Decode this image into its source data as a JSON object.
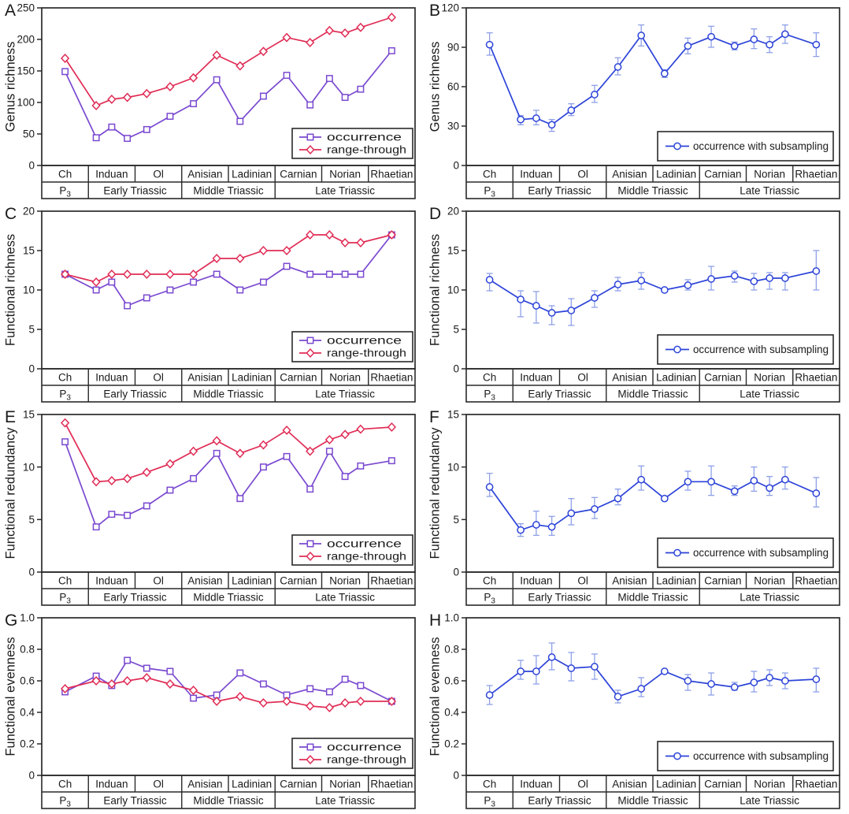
{
  "figure": {
    "colors": {
      "occurrence": "#7a49d0",
      "range_through": "#e02d56",
      "subsampling": "#2c43d8",
      "error_bar": "#8fa0e8",
      "axis": "#2a2a2a",
      "text": "#1a1a1a",
      "background": "#ffffff"
    },
    "x_axis": {
      "stage_row": [
        {
          "label": "Ch",
          "bins": 1
        },
        {
          "label": "Induan",
          "bins": 3
        },
        {
          "label": "Ol",
          "bins": 2
        },
        {
          "label": "Anisian",
          "bins": 2
        },
        {
          "label": "Ladinian",
          "bins": 2
        },
        {
          "label": "Carnian",
          "bins": 2
        },
        {
          "label": "Norian",
          "bins": 3
        },
        {
          "label": "Rhaetian",
          "bins": 1
        }
      ],
      "period_row": [
        {
          "label": "P",
          "sub": "3",
          "stages": 1
        },
        {
          "label": "Early Triassic",
          "stages": 2
        },
        {
          "label": "Middle Triassic",
          "stages": 2
        },
        {
          "label": "Late Triassic",
          "stages": 3
        }
      ]
    },
    "legend_labels": {
      "occurrence": "occurrence",
      "range_through": "range-through",
      "subsampling": "occurrence with subsampling"
    }
  },
  "chart_data": [
    {
      "panel": "A",
      "type": "line",
      "ylabel": "Genus richness",
      "ylim": [
        0,
        250
      ],
      "ytick_step": 50,
      "ytick_decimals": 0,
      "grid": false,
      "legend_position": "lower-right",
      "categories": [
        "Ch",
        "Induan (a)",
        "Induan (b)",
        "Induan (c)",
        "Ol (a)",
        "Ol (b)",
        "Anisian (a)",
        "Anisian (b)",
        "Ladinian (a)",
        "Ladinian (b)",
        "Carnian (a)",
        "Carnian (b)",
        "Norian (a)",
        "Norian (b)",
        "Norian (c)",
        "Rhaetian"
      ],
      "series": [
        {
          "name": "occurrence",
          "color_key": "occurrence",
          "marker": "square",
          "values": [
            149,
            44,
            61,
            43,
            57,
            78,
            98,
            136,
            70,
            110,
            143,
            96,
            138,
            108,
            121,
            182
          ]
        },
        {
          "name": "range-through",
          "color_key": "range_through",
          "marker": "diamond",
          "values": [
            170,
            95,
            105,
            108,
            114,
            125,
            139,
            175,
            158,
            181,
            203,
            195,
            214,
            210,
            219,
            235
          ]
        }
      ]
    },
    {
      "panel": "B",
      "type": "line",
      "ylabel": "Genus richness",
      "ylim": [
        0,
        120
      ],
      "ytick_step": 30,
      "ytick_decimals": 0,
      "grid": false,
      "legend_position": "lower-right",
      "categories": [
        "Ch",
        "Induan (a)",
        "Induan (b)",
        "Induan (c)",
        "Ol (a)",
        "Ol (b)",
        "Anisian (a)",
        "Anisian (b)",
        "Ladinian (a)",
        "Ladinian (b)",
        "Carnian (a)",
        "Carnian (b)",
        "Norian (a)",
        "Norian (b)",
        "Norian (c)",
        "Rhaetian"
      ],
      "series": [
        {
          "name": "occurrence with subsampling",
          "color_key": "subsampling",
          "marker": "circle",
          "values": [
            92,
            35,
            36,
            31,
            42,
            54,
            75,
            99,
            70,
            91,
            98,
            91,
            96,
            92,
            100,
            92
          ],
          "error_low": [
            84,
            31,
            31,
            26,
            38,
            48,
            69,
            91,
            67,
            85,
            90,
            88,
            89,
            86,
            93,
            83
          ],
          "error_high": [
            101,
            38,
            42,
            35,
            47,
            61,
            82,
            107,
            73,
            97,
            106,
            94,
            104,
            98,
            107,
            101
          ]
        }
      ]
    },
    {
      "panel": "C",
      "type": "line",
      "ylabel": "Functional richness",
      "ylim": [
        0,
        20
      ],
      "ytick_step": 5,
      "ytick_decimals": 0,
      "grid": false,
      "legend_position": "lower-right",
      "categories": [
        "Ch",
        "Induan (a)",
        "Induan (b)",
        "Induan (c)",
        "Ol (a)",
        "Ol (b)",
        "Anisian (a)",
        "Anisian (b)",
        "Ladinian (a)",
        "Ladinian (b)",
        "Carnian (a)",
        "Carnian (b)",
        "Norian (a)",
        "Norian (b)",
        "Norian (c)",
        "Rhaetian"
      ],
      "series": [
        {
          "name": "occurrence",
          "color_key": "occurrence",
          "marker": "square",
          "values": [
            12,
            10,
            11,
            8,
            9,
            10,
            11,
            12,
            10,
            11,
            13,
            12,
            12,
            12,
            12,
            17
          ]
        },
        {
          "name": "range-through",
          "color_key": "range_through",
          "marker": "diamond",
          "values": [
            12,
            11,
            12,
            12,
            12,
            12,
            12,
            14,
            14,
            15,
            15,
            17,
            17,
            16,
            16,
            17
          ]
        }
      ]
    },
    {
      "panel": "D",
      "type": "line",
      "ylabel": "Functional richness",
      "ylim": [
        0,
        20
      ],
      "ytick_step": 5,
      "ytick_decimals": 0,
      "grid": false,
      "legend_position": "lower-right",
      "categories": [
        "Ch",
        "Induan (a)",
        "Induan (b)",
        "Induan (c)",
        "Ol (a)",
        "Ol (b)",
        "Anisian (a)",
        "Anisian (b)",
        "Ladinian (a)",
        "Ladinian (b)",
        "Carnian (a)",
        "Carnian (b)",
        "Norian (a)",
        "Norian (b)",
        "Norian (c)",
        "Rhaetian"
      ],
      "series": [
        {
          "name": "occurrence with subsampling",
          "color_key": "subsampling",
          "marker": "circle",
          "values": [
            11.3,
            8.8,
            8.0,
            7.1,
            7.4,
            9.0,
            10.7,
            11.2,
            10.0,
            10.6,
            11.4,
            11.8,
            11.1,
            11.5,
            11.5,
            12.4
          ],
          "error_low": [
            9.9,
            6.6,
            5.8,
            5.6,
            5.5,
            7.8,
            9.9,
            10.1,
            9.8,
            10.0,
            10.0,
            11.0,
            10.0,
            10.1,
            10.0,
            10.0
          ],
          "error_high": [
            12.1,
            9.9,
            9.8,
            8.0,
            8.9,
            9.9,
            11.6,
            12.2,
            10.2,
            11.3,
            13.0,
            12.4,
            12.1,
            12.2,
            12.2,
            15.0
          ]
        }
      ]
    },
    {
      "panel": "E",
      "type": "line",
      "ylabel": "Functional redundancy",
      "ylim": [
        0,
        15
      ],
      "ytick_step": 5,
      "ytick_decimals": 0,
      "grid": false,
      "legend_position": "lower-right",
      "categories": [
        "Ch",
        "Induan (a)",
        "Induan (b)",
        "Induan (c)",
        "Ol (a)",
        "Ol (b)",
        "Anisian (a)",
        "Anisian (b)",
        "Ladinian (a)",
        "Ladinian (b)",
        "Carnian (a)",
        "Carnian (b)",
        "Norian (a)",
        "Norian (b)",
        "Norian (c)",
        "Rhaetian"
      ],
      "series": [
        {
          "name": "occurrence",
          "color_key": "occurrence",
          "marker": "square",
          "values": [
            12.4,
            4.3,
            5.5,
            5.4,
            6.3,
            7.8,
            8.9,
            11.3,
            7.0,
            10.0,
            11.0,
            7.9,
            11.5,
            9.1,
            10.1,
            10.6
          ]
        },
        {
          "name": "range-through",
          "color_key": "range_through",
          "marker": "diamond",
          "values": [
            14.2,
            8.6,
            8.7,
            8.9,
            9.5,
            10.3,
            11.5,
            12.5,
            11.3,
            12.1,
            13.5,
            11.5,
            12.6,
            13.1,
            13.6,
            13.8
          ]
        }
      ]
    },
    {
      "panel": "F",
      "type": "line",
      "ylabel": "Functional redundancy",
      "ylim": [
        0,
        15
      ],
      "ytick_step": 5,
      "ytick_decimals": 0,
      "grid": false,
      "legend_position": "lower-right",
      "categories": [
        "Ch",
        "Induan (a)",
        "Induan (b)",
        "Induan (c)",
        "Ol (a)",
        "Ol (b)",
        "Anisian (a)",
        "Anisian (b)",
        "Ladinian (a)",
        "Ladinian (b)",
        "Carnian (a)",
        "Carnian (b)",
        "Norian (a)",
        "Norian (b)",
        "Norian (c)",
        "Rhaetian"
      ],
      "series": [
        {
          "name": "occurrence with subsampling",
          "color_key": "subsampling",
          "marker": "circle",
          "values": [
            8.1,
            4.0,
            4.5,
            4.3,
            5.6,
            6.0,
            7.0,
            8.8,
            7.0,
            8.6,
            8.6,
            7.7,
            8.7,
            8.0,
            8.8,
            7.5
          ],
          "error_low": [
            7.2,
            3.4,
            3.5,
            3.5,
            4.5,
            5.1,
            6.4,
            7.8,
            6.9,
            7.8,
            7.3,
            7.3,
            7.7,
            7.3,
            7.9,
            6.2
          ],
          "error_high": [
            9.4,
            4.6,
            5.8,
            5.3,
            7.0,
            7.1,
            7.9,
            10.1,
            7.1,
            9.6,
            10.1,
            8.2,
            10.0,
            9.1,
            10.0,
            9.0
          ]
        }
      ]
    },
    {
      "panel": "G",
      "type": "line",
      "ylabel": "Functional evenness",
      "ylim": [
        0,
        1.0
      ],
      "ytick_step": 0.2,
      "ytick_decimals": 1,
      "grid": false,
      "legend_position": "lower-right",
      "categories": [
        "Ch",
        "Induan (a)",
        "Induan (b)",
        "Induan (c)",
        "Ol (a)",
        "Ol (b)",
        "Anisian (a)",
        "Anisian (b)",
        "Ladinian (a)",
        "Ladinian (b)",
        "Carnian (a)",
        "Carnian (b)",
        "Norian (a)",
        "Norian (b)",
        "Norian (c)",
        "Rhaetian"
      ],
      "series": [
        {
          "name": "occurrence",
          "color_key": "occurrence",
          "marker": "square",
          "values": [
            0.53,
            0.63,
            0.57,
            0.73,
            0.68,
            0.66,
            0.49,
            0.51,
            0.65,
            0.58,
            0.51,
            0.55,
            0.53,
            0.61,
            0.57,
            0.47
          ]
        },
        {
          "name": "range-through",
          "color_key": "range_through",
          "marker": "diamond",
          "values": [
            0.55,
            0.6,
            0.58,
            0.6,
            0.62,
            0.58,
            0.54,
            0.47,
            0.5,
            0.46,
            0.47,
            0.44,
            0.43,
            0.46,
            0.47,
            0.47
          ]
        }
      ]
    },
    {
      "panel": "H",
      "type": "line",
      "ylabel": "Functional evenness",
      "ylim": [
        0,
        1.0
      ],
      "ytick_step": 0.2,
      "ytick_decimals": 1,
      "grid": false,
      "legend_position": "lower-right",
      "categories": [
        "Ch",
        "Induan (a)",
        "Induan (b)",
        "Induan (c)",
        "Ol (a)",
        "Ol (b)",
        "Anisian (a)",
        "Anisian (b)",
        "Ladinian (a)",
        "Ladinian (b)",
        "Carnian (a)",
        "Carnian (b)",
        "Norian (a)",
        "Norian (b)",
        "Norian (c)",
        "Rhaetian"
      ],
      "series": [
        {
          "name": "occurrence with subsampling",
          "color_key": "subsampling",
          "marker": "circle",
          "values": [
            0.51,
            0.66,
            0.66,
            0.75,
            0.68,
            0.69,
            0.5,
            0.55,
            0.66,
            0.6,
            0.58,
            0.56,
            0.59,
            0.62,
            0.6,
            0.61
          ],
          "error_low": [
            0.45,
            0.61,
            0.58,
            0.67,
            0.6,
            0.61,
            0.46,
            0.5,
            0.65,
            0.54,
            0.51,
            0.54,
            0.53,
            0.57,
            0.55,
            0.53
          ],
          "error_high": [
            0.57,
            0.73,
            0.76,
            0.84,
            0.78,
            0.77,
            0.54,
            0.62,
            0.67,
            0.64,
            0.65,
            0.59,
            0.66,
            0.67,
            0.65,
            0.68
          ]
        }
      ]
    }
  ]
}
